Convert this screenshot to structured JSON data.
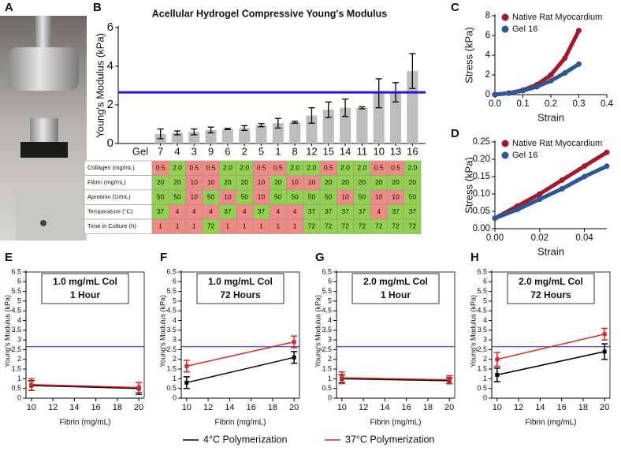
{
  "photo_panel": {
    "label": "A"
  },
  "legend": [
    {
      "name": "4°C Polymerization",
      "color": "#000000"
    },
    {
      "name": "37°C Polymerization",
      "color": "#e0231c"
    }
  ],
  "chart_data": [
    {
      "type": "bar",
      "panel": "B",
      "title": "Acellular Hydrogel Compressive Young's Modulus",
      "ylabel": "Young's Modulus (kPa)",
      "xlabel": "Gel",
      "categories": [
        "7",
        "4",
        "3",
        "9",
        "6",
        "2",
        "5",
        "1",
        "8",
        "12",
        "15",
        "14",
        "11",
        "10",
        "13",
        "16"
      ],
      "values": [
        0.5,
        0.55,
        0.6,
        0.7,
        0.75,
        0.8,
        0.95,
        1.05,
        1.1,
        1.45,
        1.75,
        1.85,
        1.85,
        2.6,
        2.65,
        3.75
      ],
      "errors": [
        0.25,
        0.1,
        0.15,
        0.15,
        0.03,
        0.12,
        0.08,
        0.25,
        0.05,
        0.4,
        0.4,
        0.45,
        0.05,
        0.75,
        0.5,
        0.9
      ],
      "color": "#bdbdbd",
      "ylim": [
        0,
        6
      ],
      "yticks": [
        0,
        2,
        4,
        6
      ],
      "reference_line": {
        "value": 2.65,
        "color": "#1c1cdc"
      },
      "table": {
        "high_color": "#92d050",
        "low_color": "#f08a84",
        "rows": [
          {
            "name": "Collagen (mg/mL)",
            "cells": [
              "0.5",
              "2.0",
              "0.5",
              "0.5",
              "2.0",
              "2.0",
              "0.5",
              "0.5",
              "2.0",
              "2.0",
              "0.5",
              "2.0",
              "2.0",
              "0.5",
              "0.5",
              "2.0"
            ]
          },
          {
            "name": "Fibrin (mg/mL)",
            "cells": [
              "20",
              "20",
              "10",
              "10",
              "20",
              "20",
              "10",
              "20",
              "10",
              "10",
              "20",
              "20",
              "20",
              "20",
              "20",
              "20"
            ]
          },
          {
            "name": "Aprotinin (U/mL)",
            "cells": [
              "50",
              "50",
              "10",
              "50",
              "10",
              "50",
              "10",
              "50",
              "50",
              "50",
              "50",
              "10",
              "50",
              "10",
              "10",
              "50"
            ]
          },
          {
            "name": "Temperature (°C)",
            "cells": [
              "37",
              "4",
              "4",
              "4",
              "37",
              "4",
              "37",
              "4",
              "4",
              "37",
              "37",
              "37",
              "37",
              "4",
              "37",
              "37"
            ]
          },
          {
            "name": "Time in Culture (h)",
            "cells": [
              "1",
              "1",
              "1",
              "72",
              "1",
              "1",
              "1",
              "1",
              "1",
              "72",
              "72",
              "72",
              "72",
              "72",
              "72",
              "72"
            ]
          }
        ]
      }
    },
    {
      "type": "line",
      "panel": "C",
      "xlabel": "Strain",
      "ylabel": "Stress (kPa)",
      "x": [
        0,
        0.05,
        0.1,
        0.15,
        0.2,
        0.25,
        0.3
      ],
      "series": [
        {
          "name": "Native Rat Myocardium",
          "color": "#a3182a",
          "values": [
            0,
            0.15,
            0.45,
            1.0,
            2.0,
            3.7,
            6.5
          ]
        },
        {
          "name": "Gel 16",
          "color": "#2b5797",
          "values": [
            0,
            0.15,
            0.4,
            0.8,
            1.4,
            2.2,
            3.1
          ]
        }
      ],
      "xlim": [
        0,
        0.4
      ],
      "xticks": [
        {
          "value": 0,
          "label": "0.0"
        },
        0.1,
        0.2,
        0.3,
        0.4
      ],
      "ylim": [
        0,
        8
      ],
      "yticks": [
        0,
        2,
        4,
        6,
        8
      ],
      "legend": "upper left"
    },
    {
      "type": "line",
      "panel": "D",
      "xlabel": "Strain",
      "ylabel": "Stress (kPa)",
      "x": [
        0,
        0.01,
        0.02,
        0.03,
        0.04,
        0.05
      ],
      "series": [
        {
          "name": "Native Rat Myocardium",
          "color": "#a3182a",
          "values": [
            0.03,
            0.065,
            0.1,
            0.14,
            0.18,
            0.22
          ]
        },
        {
          "name": "Gel 16",
          "color": "#2b5797",
          "values": [
            0.03,
            0.055,
            0.085,
            0.115,
            0.15,
            0.18
          ]
        }
      ],
      "xlim": [
        0,
        0.05
      ],
      "xticks": [
        {
          "value": 0,
          "label": "0.00"
        },
        0.02,
        0.04
      ],
      "ylim": [
        0,
        0.25
      ],
      "yticks": [
        {
          "value": 0,
          "label": "0.00"
        },
        0.05,
        {
          "value": 0.1,
          "label": "0.10"
        },
        0.15,
        {
          "value": 0.2,
          "label": "0.20"
        },
        0.25
      ],
      "legend": "upper left"
    },
    {
      "type": "errorline",
      "panel": "E",
      "title": "1.0 mg/mL Col",
      "subtitle": "1 Hour",
      "xlabel": "Fibrin (mg/mL)",
      "ylabel": "Young's Modulus (kPa)",
      "x": [
        10,
        20
      ],
      "series": [
        {
          "color": "#000000",
          "values": [
            0.65,
            0.5
          ],
          "errors": [
            0.25,
            0.3
          ]
        },
        {
          "color": "#e0231c",
          "values": [
            0.7,
            0.55
          ],
          "errors": [
            0.3,
            0.25
          ]
        }
      ],
      "xlim": [
        9.5,
        20.5
      ],
      "xticks": [
        10,
        12,
        14,
        16,
        18,
        20
      ],
      "ylim": [
        0,
        6.5
      ],
      "yticks": [
        0,
        0.5,
        1,
        1.5,
        2,
        2.5,
        3,
        3.5,
        4,
        4.5,
        5,
        5.5,
        6,
        6.5
      ],
      "reference_line": {
        "value": 2.65,
        "color": "#1c1cdc"
      }
    },
    {
      "type": "errorline",
      "panel": "F",
      "title": "1.0 mg/mL Col",
      "subtitle": "72 Hours",
      "xlabel": "Fibrin (mg/mL)",
      "ylabel": "Young's Modulus (kPa)",
      "x": [
        10,
        20
      ],
      "series": [
        {
          "color": "#000000",
          "values": [
            0.8,
            2.1
          ],
          "errors": [
            0.3,
            0.3
          ]
        },
        {
          "color": "#e0231c",
          "values": [
            1.65,
            2.9
          ],
          "errors": [
            0.3,
            0.3
          ]
        }
      ],
      "xlim": [
        9.5,
        20.5
      ],
      "xticks": [
        10,
        12,
        14,
        16,
        18,
        20
      ],
      "ylim": [
        0,
        6.5
      ],
      "yticks": [
        0,
        0.5,
        1,
        1.5,
        2,
        2.5,
        3,
        3.5,
        4,
        4.5,
        5,
        5.5,
        6,
        6.5
      ],
      "reference_line": {
        "value": 2.65,
        "color": "#1c1cdc"
      }
    },
    {
      "type": "errorline",
      "panel": "G",
      "title": "2.0 mg/mL Col",
      "subtitle": "1 Hour",
      "xlabel": "Fibrin (mg/mL)",
      "ylabel": "Young's Modulus (kPa)",
      "x": [
        10,
        20
      ],
      "series": [
        {
          "color": "#000000",
          "values": [
            1.0,
            0.9
          ],
          "errors": [
            0.2,
            0.15
          ]
        },
        {
          "color": "#e0231c",
          "values": [
            1.05,
            0.95
          ],
          "errors": [
            0.3,
            0.2
          ]
        }
      ],
      "xlim": [
        9.5,
        20.5
      ],
      "xticks": [
        10,
        12,
        14,
        16,
        18,
        20
      ],
      "ylim": [
        0,
        6.5
      ],
      "yticks": [
        0,
        0.5,
        1,
        1.5,
        2,
        2.5,
        3,
        3.5,
        4,
        4.5,
        5,
        5.5,
        6,
        6.5
      ],
      "reference_line": {
        "value": 2.65,
        "color": "#1c1cdc"
      }
    },
    {
      "type": "errorline",
      "panel": "H",
      "title": "2.0 mg/mL Col",
      "subtitle": "72 Hours",
      "xlabel": "Fibrin (mg/mL)",
      "ylabel": "Young's Modulus (kPa)",
      "x": [
        10,
        20
      ],
      "series": [
        {
          "color": "#000000",
          "values": [
            1.2,
            2.4
          ],
          "errors": [
            0.35,
            0.4
          ]
        },
        {
          "color": "#e0231c",
          "values": [
            2.0,
            3.3
          ],
          "errors": [
            0.35,
            0.3
          ]
        }
      ],
      "xlim": [
        9.5,
        20.5
      ],
      "xticks": [
        10,
        12,
        14,
        16,
        18,
        20
      ],
      "ylim": [
        0,
        6.5
      ],
      "yticks": [
        0,
        0.5,
        1,
        1.5,
        2,
        2.5,
        3,
        3.5,
        4,
        4.5,
        5,
        5.5,
        6,
        6.5
      ],
      "reference_line": {
        "value": 2.65,
        "color": "#1c1cdc"
      }
    }
  ]
}
